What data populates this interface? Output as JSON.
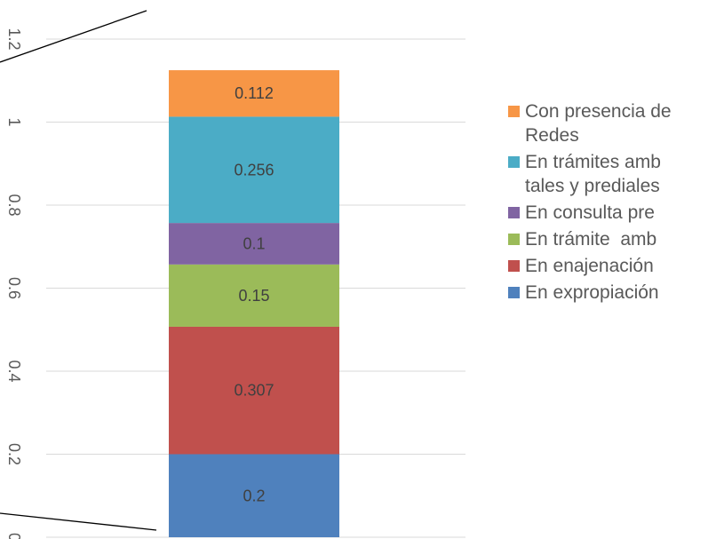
{
  "chart_data": {
    "type": "bar",
    "stacked": true,
    "title": "",
    "xlabel": "",
    "ylabel": "",
    "ylim": [
      0,
      1.2
    ],
    "y_ticks": [
      "0",
      "0.2",
      "0.4",
      "0.6",
      "0.8",
      "1",
      "1.2"
    ],
    "grid": true,
    "legend_position": "right",
    "series": [
      {
        "name": "En expropiación",
        "value": 0.2,
        "label": "0.2",
        "color": "#4F81BD"
      },
      {
        "name": "En enajenación",
        "value": 0.307,
        "label": "0.307",
        "color": "#C0504D"
      },
      {
        "name": "En trámite  amb",
        "value": 0.15,
        "label": "0.15",
        "color": "#9BBB59"
      },
      {
        "name": "En consulta pre",
        "value": 0.1,
        "label": "0.1",
        "color": "#8064A2"
      },
      {
        "name": "En trámites amb\ntales y prediales",
        "value": 0.256,
        "label": "0.256",
        "color": "#4BACC6"
      },
      {
        "name": "Con presencia de\nRedes",
        "value": 0.112,
        "label": "0.112",
        "color": "#F79646"
      }
    ]
  }
}
